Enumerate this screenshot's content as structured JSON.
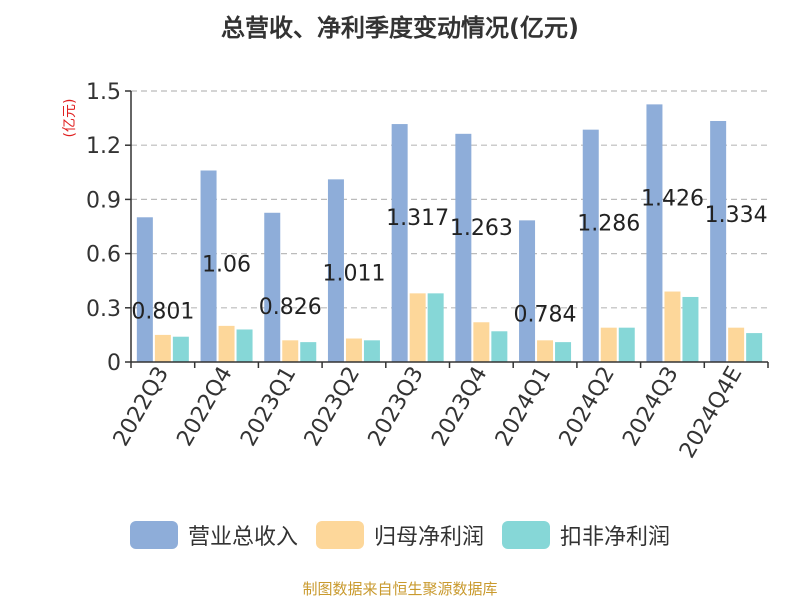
{
  "source_note": "制图数据来自恒生聚源数据库",
  "chart_data": {
    "type": "bar",
    "title": "总营收、净利季度变动情况(亿元)",
    "ylabel": "(亿元)",
    "xlabel": "",
    "ylim": [
      0,
      1.5
    ],
    "yticks": [
      0,
      0.3,
      0.6,
      0.9,
      1.2,
      1.5
    ],
    "ytick_labels": [
      "0",
      "0.3",
      "0.6",
      "0.9",
      "1.2",
      "1.5"
    ],
    "grid": true,
    "legend_position": "bottom",
    "categories": [
      "2022Q3",
      "2022Q4",
      "2023Q1",
      "2023Q2",
      "2023Q3",
      "2023Q4",
      "2024Q1",
      "2024Q2",
      "2024Q3",
      "2024Q4E"
    ],
    "series": [
      {
        "name": "营业总收入",
        "color": "#8eadd9",
        "values": [
          0.801,
          1.06,
          0.826,
          1.011,
          1.317,
          1.263,
          0.784,
          1.286,
          1.426,
          1.334
        ],
        "labels": [
          "0.801",
          "1.06",
          "0.826",
          "1.011",
          "1.317",
          "1.263",
          "0.784",
          "1.286",
          "1.426",
          "1.334"
        ]
      },
      {
        "name": "归母净利润",
        "color": "#fdd79a",
        "values": [
          0.15,
          0.2,
          0.12,
          0.13,
          0.38,
          0.22,
          0.12,
          0.19,
          0.39,
          0.19
        ]
      },
      {
        "name": "扣非净利润",
        "color": "#86d7d7",
        "values": [
          0.14,
          0.18,
          0.11,
          0.12,
          0.38,
          0.17,
          0.11,
          0.19,
          0.36,
          0.16
        ]
      }
    ]
  }
}
